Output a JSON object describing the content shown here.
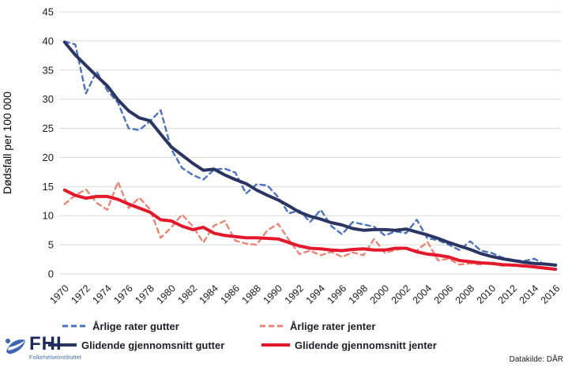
{
  "footer": {
    "source": "Datakilde: DÅR"
  },
  "logo": {
    "abbr": "FHI",
    "name": "Folkehelseinstituttet",
    "icon": "fhi-swoosh-icon",
    "abbr_color": "#1b2a5e",
    "icon_color": "#3d65b5"
  },
  "colors": {
    "grid": "#d9d9d9",
    "tick_text": "#1a1a1a",
    "background": "#ffffff"
  },
  "chart_data": {
    "type": "line",
    "title": "",
    "xlabel": "",
    "ylabel": "Dødsfall per 100 000",
    "ylim": [
      0,
      45
    ],
    "yticks": [
      0,
      5,
      10,
      15,
      20,
      25,
      30,
      35,
      40,
      45
    ],
    "grid": "horizontal-only",
    "legend_position": "bottom",
    "x": [
      1970,
      1971,
      1972,
      1973,
      1974,
      1975,
      1976,
      1977,
      1978,
      1979,
      1980,
      1981,
      1982,
      1983,
      1984,
      1985,
      1986,
      1987,
      1988,
      1989,
      1990,
      1991,
      1992,
      1993,
      1994,
      1995,
      1996,
      1997,
      1998,
      1999,
      2000,
      2001,
      2002,
      2003,
      2004,
      2005,
      2006,
      2007,
      2008,
      2009,
      2010,
      2011,
      2012,
      2013,
      2014,
      2015,
      2016
    ],
    "xticks": [
      1970,
      1972,
      1974,
      1976,
      1978,
      1980,
      1982,
      1984,
      1986,
      1988,
      1990,
      1992,
      1994,
      1996,
      1998,
      2000,
      2002,
      2004,
      2006,
      2008,
      2010,
      2012,
      2014,
      2016
    ],
    "series": [
      {
        "name": "Årlige rater gutter",
        "color": "#4a72c4",
        "style": "dashed",
        "width": 2.4,
        "values": [
          39.9,
          39.4,
          31.0,
          34.8,
          31.5,
          29.4,
          25.0,
          24.7,
          26.2,
          28.1,
          21.4,
          18.2,
          17.0,
          16.2,
          17.9,
          18.1,
          17.4,
          13.8,
          15.4,
          15.2,
          13.2,
          10.4,
          10.9,
          8.9,
          11.0,
          8.2,
          6.8,
          8.9,
          8.5,
          8.1,
          6.6,
          7.3,
          7.0,
          9.3,
          6.1,
          5.8,
          5.0,
          4.1,
          5.6,
          4.0,
          3.6,
          2.8,
          2.4,
          2.2,
          2.6,
          1.6,
          1.5
        ]
      },
      {
        "name": "Årlige rater jenter",
        "color": "#ee8373",
        "style": "dashed",
        "width": 2.4,
        "values": [
          12.0,
          13.5,
          14.5,
          12.2,
          11.0,
          15.8,
          11.3,
          13.1,
          11.1,
          6.2,
          8.0,
          10.2,
          8.2,
          5.4,
          8.3,
          9.1,
          5.7,
          5.2,
          5.0,
          7.5,
          8.6,
          5.9,
          3.4,
          4.0,
          3.2,
          3.8,
          2.9,
          3.7,
          3.2,
          6.0,
          3.6,
          4.1,
          4.5,
          4.0,
          5.5,
          2.3,
          2.6,
          1.6,
          1.8,
          1.6,
          2.0,
          1.4,
          1.5,
          1.2,
          1.4,
          0.9,
          0.7
        ]
      },
      {
        "name": "Glidende gjennomsnitt gutter",
        "color": "#2b3563",
        "style": "solid",
        "width": 4,
        "values": [
          39.8,
          37.6,
          35.8,
          34.0,
          32.3,
          29.9,
          28.0,
          26.8,
          26.3,
          24.0,
          21.8,
          20.4,
          19.0,
          17.8,
          18.0,
          17.0,
          16.2,
          15.5,
          14.4,
          13.5,
          12.7,
          11.7,
          10.6,
          9.9,
          9.4,
          8.8,
          8.4,
          7.8,
          7.5,
          7.6,
          7.6,
          7.5,
          7.7,
          7.2,
          6.7,
          6.1,
          5.4,
          4.8,
          4.2,
          3.5,
          3.0,
          2.6,
          2.3,
          2.0,
          1.8,
          1.7,
          1.5
        ]
      },
      {
        "name": "Glidende gjennomsnitt jenter",
        "color": "#e4182b",
        "style": "solid",
        "width": 4,
        "values": [
          14.4,
          13.5,
          13.0,
          13.3,
          13.3,
          12.8,
          12.0,
          11.3,
          10.6,
          9.3,
          9.1,
          8.2,
          7.6,
          8.0,
          7.0,
          6.6,
          6.4,
          6.2,
          6.2,
          6.1,
          6.0,
          5.4,
          4.8,
          4.4,
          4.3,
          4.1,
          4.0,
          4.2,
          4.3,
          4.1,
          4.1,
          4.4,
          4.4,
          3.8,
          3.4,
          3.2,
          2.9,
          2.3,
          2.1,
          1.9,
          1.8,
          1.6,
          1.5,
          1.4,
          1.2,
          1.0,
          0.8
        ]
      }
    ]
  }
}
